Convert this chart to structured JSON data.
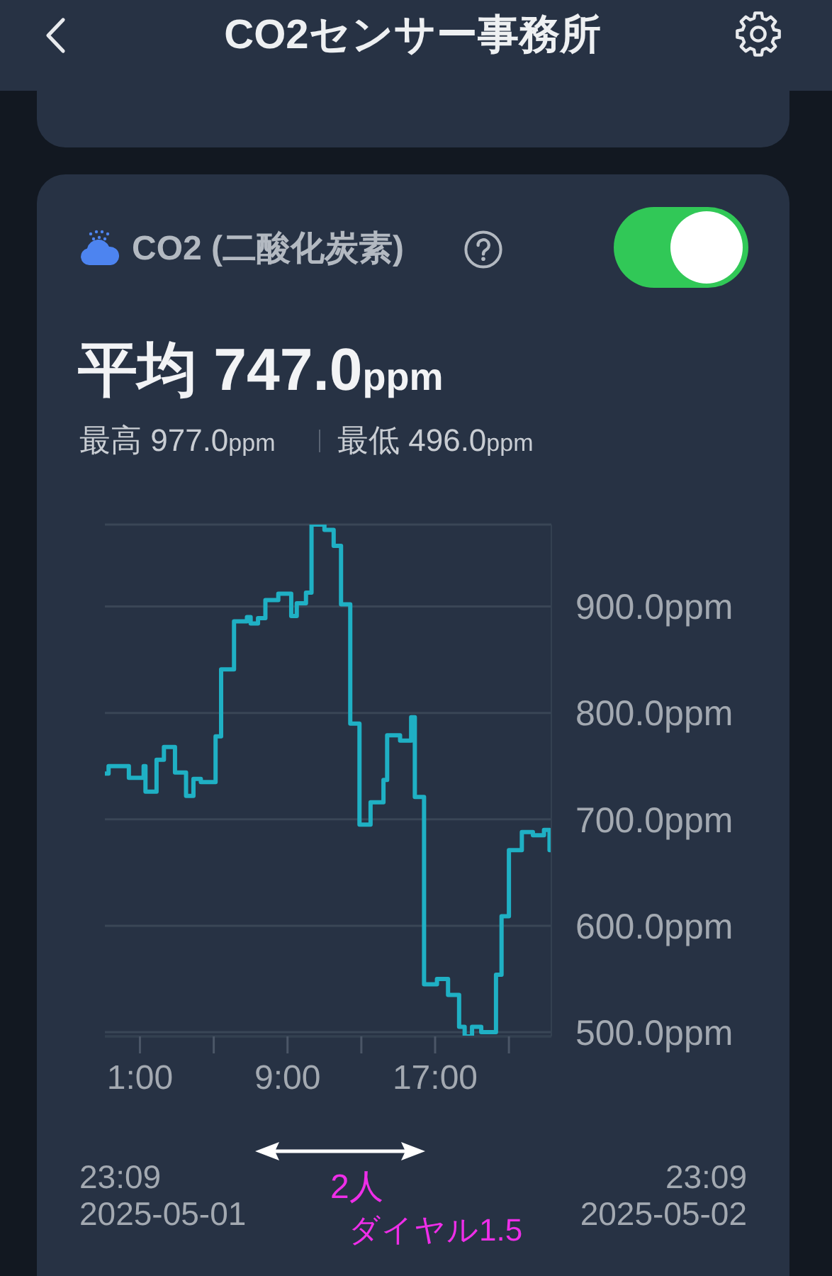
{
  "chart_data": {
    "type": "step",
    "title": "CO2センサー事務所",
    "subtitle": "CO2 (二酸化炭素)",
    "annotations": [
      "平均 747.0ppm",
      "最高 977.0ppm",
      "最低 496.0ppm",
      "23:09",
      "2025-05-01",
      "23:09",
      "2025-05-02",
      "2人",
      "ダイヤル1.5"
    ],
    "x": [
      "2025-05-01T23:06",
      "2025-05-01T23:18",
      "2025-05-02T00:24",
      "2025-05-02T01:12",
      "2025-05-02T01:18",
      "2025-05-02T01:54",
      "2025-05-02T02:18",
      "2025-05-02T02:54",
      "2025-05-02T03:30",
      "2025-05-02T03:54",
      "2025-05-02T04:18",
      "2025-05-02T05:06",
      "2025-05-02T05:24",
      "2025-05-02T06:06",
      "2025-05-02T06:48",
      "2025-05-02T07:00",
      "2025-05-02T07:24",
      "2025-05-02T07:48",
      "2025-05-02T08:30",
      "2025-05-02T09:12",
      "2025-05-02T09:30",
      "2025-05-02T10:00",
      "2025-05-02T10:18",
      "2025-05-02T11:00",
      "2025-05-02T11:30",
      "2025-05-02T11:54",
      "2025-05-02T12:24",
      "2025-05-02T12:54",
      "2025-05-02T13:30",
      "2025-05-02T14:12",
      "2025-05-02T14:24",
      "2025-05-02T15:06",
      "2025-05-02T15:42",
      "2025-05-02T15:54",
      "2025-05-02T16:24",
      "2025-05-02T17:06",
      "2025-05-02T17:42",
      "2025-05-02T18:18",
      "2025-05-02T18:36",
      "2025-05-02T19:00",
      "2025-05-02T19:30",
      "2025-05-02T20:18",
      "2025-05-02T20:36",
      "2025-05-02T21:00",
      "2025-05-02T21:42",
      "2025-05-02T22:18",
      "2025-05-02T22:54",
      "2025-05-02T23:12",
      "2025-05-02T23:18"
    ],
    "values": [
      743,
      750,
      739,
      750,
      726,
      756,
      768,
      744,
      722,
      738,
      735,
      778,
      841,
      886,
      890,
      884,
      889,
      906,
      912,
      891,
      903,
      913,
      977,
      972,
      957,
      902,
      790,
      695,
      716,
      737,
      779,
      774,
      796,
      721,
      545,
      550,
      535,
      505,
      496,
      505,
      500,
      554,
      609,
      671,
      688,
      685,
      690,
      671,
      671
    ],
    "color": "#1fb0c4",
    "xlim": [
      "2025-05-01T23:06",
      "2025-05-02T23:18"
    ],
    "xticks": [
      {
        "value": "2025-05-02T01:00",
        "label": "1:00"
      },
      {
        "value": "2025-05-02T05:00",
        "label": null
      },
      {
        "value": "2025-05-02T09:00",
        "label": "9:00"
      },
      {
        "value": "2025-05-02T13:00",
        "label": null
      },
      {
        "value": "2025-05-02T17:00",
        "label": "17:00"
      },
      {
        "value": "2025-05-02T21:00",
        "label": null
      }
    ],
    "ylim": [
      496,
      977
    ],
    "yticks": [
      {
        "value": 500,
        "label": "500.0ppm"
      },
      {
        "value": 600,
        "label": "600.0ppm"
      },
      {
        "value": 700,
        "label": "700.0ppm"
      },
      {
        "value": 800,
        "label": "800.0ppm"
      },
      {
        "value": 900,
        "label": "900.0ppm"
      }
    ],
    "grid": "y"
  }
}
